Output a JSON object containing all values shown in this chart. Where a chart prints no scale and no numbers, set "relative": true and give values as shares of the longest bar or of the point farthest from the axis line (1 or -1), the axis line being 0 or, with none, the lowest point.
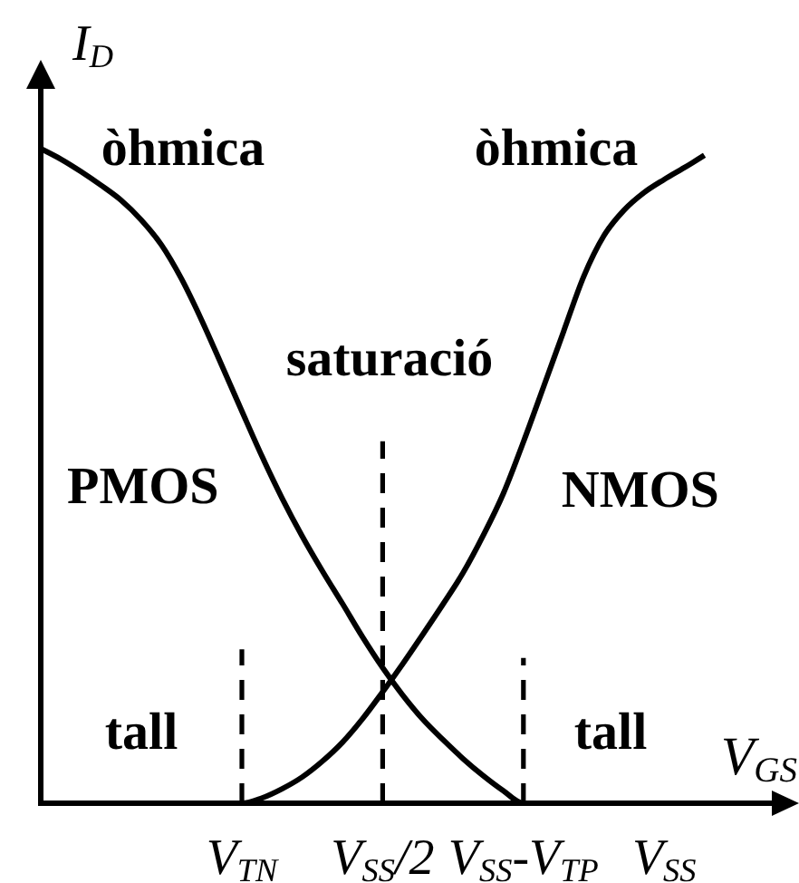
{
  "chart_data": {
    "type": "line",
    "relative": true,
    "xlabel": "V$_{GS}$",
    "ylabel": "I$_{D}$",
    "categories": [
      null,
      null,
      null,
      null,
      null,
      null,
      null,
      null,
      null,
      null,
      "V$_{TN}$",
      null,
      null,
      null,
      null,
      null,
      null,
      "V$_{SS}$/2",
      null,
      null,
      null,
      null,
      null,
      null,
      "V$_{SS}$-V$_{TP}$",
      null,
      null,
      null,
      null,
      null,
      null,
      "V$_{SS}$",
      null,
      null,
      null,
      null,
      null
    ],
    "series": [
      {
        "name": "PMOS",
        "color": "#000000",
        "values": [
          1,
          0.984,
          0.965,
          0.944,
          0.921,
          0.891,
          0.853,
          0.801,
          0.738,
          0.669,
          0.599,
          0.53,
          0.466,
          0.408,
          0.355,
          0.305,
          0.254,
          0.207,
          0.165,
          0.128,
          0.097,
          0.068,
          0.042,
          0.019,
          0,
          0,
          0,
          0,
          0,
          0,
          0,
          0,
          0,
          0,
          0,
          0,
          0
        ]
      },
      {
        "name": "NMOS",
        "color": "#000000",
        "values": [
          0,
          0,
          0,
          0,
          0,
          0,
          0,
          0,
          0,
          0,
          0,
          0.008,
          0.022,
          0.04,
          0.064,
          0.093,
          0.129,
          0.17,
          0.213,
          0.258,
          0.304,
          0.352,
          0.409,
          0.473,
          0.552,
          0.636,
          0.721,
          0.805,
          0.867,
          0.906,
          0.933,
          0.953,
          0.971,
          0.99,
          null,
          null,
          null
        ]
      },
      {
        "color": "#000000",
        "line_style": "dashed",
        "x": [
          "V$_{TN}$",
          "V$_{TN}$"
        ],
        "values": [
          0,
          0.235
        ]
      },
      {
        "color": "#000000",
        "line_style": "dashed",
        "x": [
          "V$_{SS}$/2",
          "V$_{SS}$/2"
        ],
        "values": [
          0,
          0.553
        ]
      },
      {
        "color": "#000000",
        "line_style": "dashed",
        "x": [
          "V$_{SS}$-V$_{TP}$",
          "V$_{SS}$-V$_{TP}$"
        ],
        "values": [
          0,
          0.222
        ]
      }
    ],
    "annotations": [
      "òhmica",
      "òhmica",
      "saturació",
      "tall",
      "tall"
    ]
  }
}
